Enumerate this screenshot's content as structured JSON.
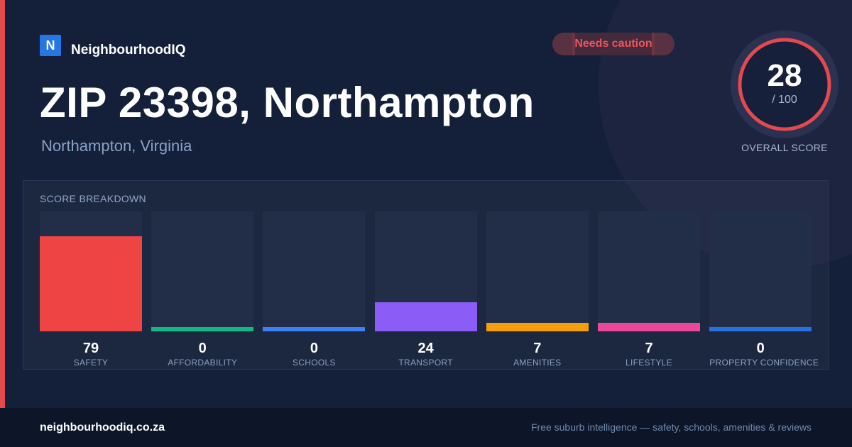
{
  "brand": {
    "logo_letter": "N",
    "name": "NeighbourhoodIQ",
    "color": "#2677e6"
  },
  "status": {
    "label": "Needs caution",
    "color": "#f0535a"
  },
  "header": {
    "title": "ZIP 23398, Northampton",
    "subtitle": "Northampton, Virginia"
  },
  "overall": {
    "value": "28",
    "max_label": "/ 100",
    "caption": "OVERALL SCORE",
    "ring_color": "#e5484d"
  },
  "breakdown": {
    "title": "SCORE BREAKDOWN",
    "items": [
      {
        "label": "SAFETY",
        "value": "79",
        "color": "#ef4444"
      },
      {
        "label": "AFFORDABILITY",
        "value": "0",
        "color": "#10b981"
      },
      {
        "label": "SCHOOLS",
        "value": "0",
        "color": "#3b82f6"
      },
      {
        "label": "TRANSPORT",
        "value": "24",
        "color": "#8b5cf6"
      },
      {
        "label": "AMENITIES",
        "value": "7",
        "color": "#f59e0b"
      },
      {
        "label": "LIFESTYLE",
        "value": "7",
        "color": "#ec4899"
      },
      {
        "label": "PROPERTY CONFIDENCE",
        "value": "0",
        "color": "#2672e0"
      }
    ]
  },
  "footer": {
    "domain": "neighbourhoodiq.co.za",
    "tagline": "Free suburb intelligence — safety, schools, amenities & reviews"
  },
  "chart_data": {
    "type": "bar",
    "title": "SCORE BREAKDOWN",
    "categories": [
      "SAFETY",
      "AFFORDABILITY",
      "SCHOOLS",
      "TRANSPORT",
      "AMENITIES",
      "LIFESTYLE",
      "PROPERTY CONFIDENCE"
    ],
    "values": [
      79,
      0,
      0,
      24,
      7,
      7,
      0
    ],
    "ylim": [
      0,
      100
    ],
    "grid": false,
    "xlabel": "",
    "ylabel": ""
  }
}
